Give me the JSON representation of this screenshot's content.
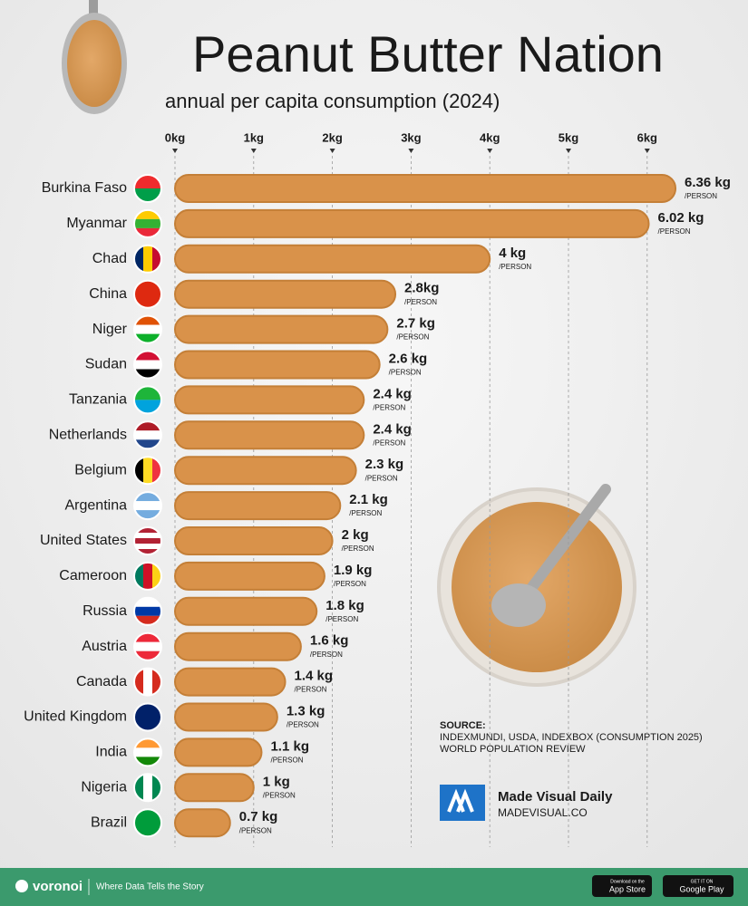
{
  "chart_data": {
    "type": "bar",
    "orientation": "horizontal",
    "title": "Peanut Butter Nation",
    "subtitle": "annual per capita consumption (2024)",
    "categories": [
      "Burkina Faso",
      "Myanmar",
      "Chad",
      "China",
      "Niger",
      "Sudan",
      "Tanzania",
      "Netherlands",
      "Belgium",
      "Argentina",
      "United States",
      "Cameroon",
      "Russia",
      "Austria",
      "Canada",
      "United Kingdom",
      "India",
      "Nigeria",
      "Brazil"
    ],
    "values": [
      6.36,
      6.02,
      4,
      2.8,
      2.7,
      2.6,
      2.4,
      2.4,
      2.3,
      2.1,
      2,
      1.9,
      1.8,
      1.6,
      1.4,
      1.3,
      1.1,
      1,
      0.7
    ],
    "value_labels": [
      "6.36 kg",
      "6.02 kg",
      "4 kg",
      "2.8kg",
      "2.7 kg",
      "2.6 kg",
      "2.4 kg",
      "2.4 kg",
      "2.3 kg",
      "2.1 kg",
      "2 kg",
      "1.9 kg",
      "1.8 kg",
      "1.6 kg",
      "1.4 kg",
      "1.3 kg",
      "1.1 kg",
      "1 kg",
      "0.7 kg"
    ],
    "value_note": "/PERSON",
    "color": "#d9924a",
    "xlim": [
      0,
      7
    ],
    "xticks": [
      {
        "value": 0,
        "label": "0kg"
      },
      {
        "value": 1,
        "label": "1kg"
      },
      {
        "value": 2,
        "label": "2kg"
      },
      {
        "value": 3,
        "label": "3kg"
      },
      {
        "value": 4,
        "label": "4kg"
      },
      {
        "value": 5,
        "label": "5kg"
      },
      {
        "value": 6,
        "label": "6kg"
      }
    ],
    "grid": true,
    "source_label": "SOURCE:",
    "source_lines": [
      "INDEXMUNDI, USDA, INDEXBOX (CONSUMPTION 2025)",
      "WORLD POPULATION REVIEW"
    ],
    "brand": "Made Visual Daily",
    "brand_url": "MADEVISUAL.CO",
    "footer": {
      "logo": "voronoi",
      "tagline": "Where Data Tells the Story",
      "app_store_small": "Download on the",
      "app_store": "App Store",
      "google_small": "GET IT ON",
      "google": "Google Play"
    }
  }
}
